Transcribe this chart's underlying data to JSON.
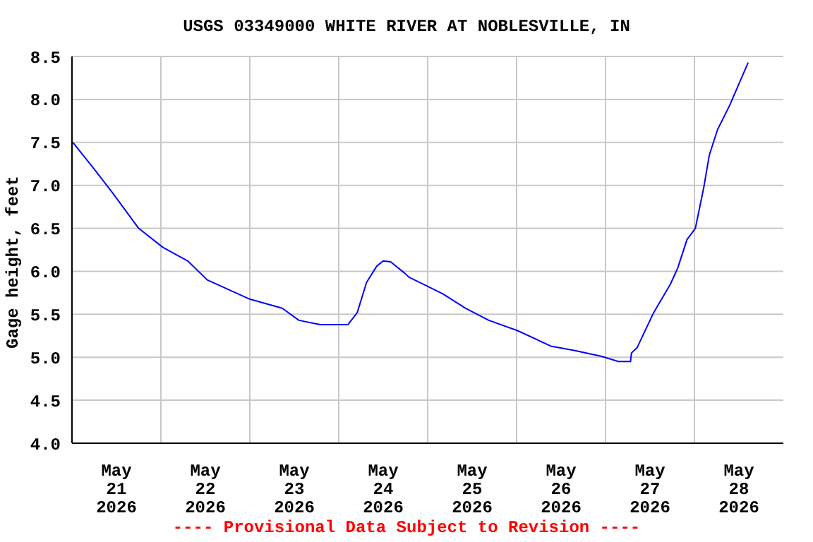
{
  "chart_data": {
    "type": "line",
    "title": "USGS 03349000 WHITE RIVER AT NOBLESVILLE, IN",
    "ylabel": "Gage height, feet",
    "annotations": [
      "---- Provisional Data Subject to Revision ----"
    ],
    "x": [
      "2026-05-21T00:15",
      "2026-05-21T06:00",
      "2026-05-21T11:00",
      "2026-05-21T18:00",
      "2026-05-22T00:30",
      "2026-05-22T07:15",
      "2026-05-22T12:30",
      "2026-05-22T23:45",
      "2026-05-23T08:45",
      "2026-05-23T13:15",
      "2026-05-23T19:00",
      "2026-05-24T02:30",
      "2026-05-24T05:00",
      "2026-05-24T07:30",
      "2026-05-24T10:15",
      "2026-05-24T12:00",
      "2026-05-24T14:00",
      "2026-05-24T17:45",
      "2026-05-24T19:00",
      "2026-05-25T04:00",
      "2026-05-25T10:15",
      "2026-05-25T16:30",
      "2026-05-26T00:15",
      "2026-05-26T09:15",
      "2026-05-26T15:30",
      "2026-05-26T23:00",
      "2026-05-27T03:30",
      "2026-05-27T06:45",
      "2026-05-27T07:00",
      "2026-05-27T08:30",
      "2026-05-27T13:00",
      "2026-05-27T17:30",
      "2026-05-27T19:30",
      "2026-05-27T22:00",
      "2026-05-28T00:15",
      "2026-05-28T02:30",
      "2026-05-28T04:00",
      "2026-05-28T06:15",
      "2026-05-28T09:30",
      "2026-05-28T12:30",
      "2026-05-28T14:30"
    ],
    "series": [
      {
        "color": "#0000ff",
        "values": [
          7.5,
          7.19,
          6.91,
          6.5,
          6.28,
          6.12,
          5.9,
          5.68,
          5.57,
          5.43,
          5.38,
          5.38,
          5.52,
          5.87,
          6.06,
          6.12,
          6.11,
          5.98,
          5.93,
          5.74,
          5.57,
          5.43,
          5.31,
          5.13,
          5.08,
          5.01,
          4.95,
          4.95,
          5.05,
          5.11,
          5.52,
          5.85,
          6.04,
          6.37,
          6.5,
          6.97,
          7.35,
          7.65,
          7.93,
          8.23,
          8.43
        ]
      }
    ],
    "xlim": [
      "2026-05-21T00:00",
      "2026-05-29T00:00"
    ],
    "xticks": [
      {
        "value": "2026-05-21T12:00",
        "label": "May\n21\n2026"
      },
      {
        "value": "2026-05-22T00:00",
        "label": null
      },
      {
        "value": "2026-05-22T12:00",
        "label": "May\n22\n2026"
      },
      {
        "value": "2026-05-23T00:00",
        "label": null
      },
      {
        "value": "2026-05-23T12:00",
        "label": "May\n23\n2026"
      },
      {
        "value": "2026-05-24T00:00",
        "label": null
      },
      {
        "value": "2026-05-24T12:00",
        "label": "May\n24\n2026"
      },
      {
        "value": "2026-05-25T00:00",
        "label": null
      },
      {
        "value": "2026-05-25T12:00",
        "label": "May\n25\n2026"
      },
      {
        "value": "2026-05-26T00:00",
        "label": null
      },
      {
        "value": "2026-05-26T12:00",
        "label": "May\n26\n2026"
      },
      {
        "value": "2026-05-27T00:00",
        "label": null
      },
      {
        "value": "2026-05-27T12:00",
        "label": "May\n27\n2026"
      },
      {
        "value": "2026-05-28T00:00",
        "label": null
      },
      {
        "value": "2026-05-28T12:00",
        "label": "May\n28\n2026"
      }
    ],
    "ylim": [
      4.0,
      8.5
    ],
    "yticks": [
      {
        "value": 4.0,
        "label": "4.0"
      },
      4.5,
      {
        "value": 5.0,
        "label": "5.0"
      },
      5.5,
      {
        "value": 6.0,
        "label": "6.0"
      },
      6.5,
      {
        "value": 7.0,
        "label": "7.0"
      },
      7.5,
      {
        "value": 8.0,
        "label": "8.0"
      },
      8.5
    ],
    "grid": true,
    "marker": "none",
    "line_style": "solid"
  }
}
